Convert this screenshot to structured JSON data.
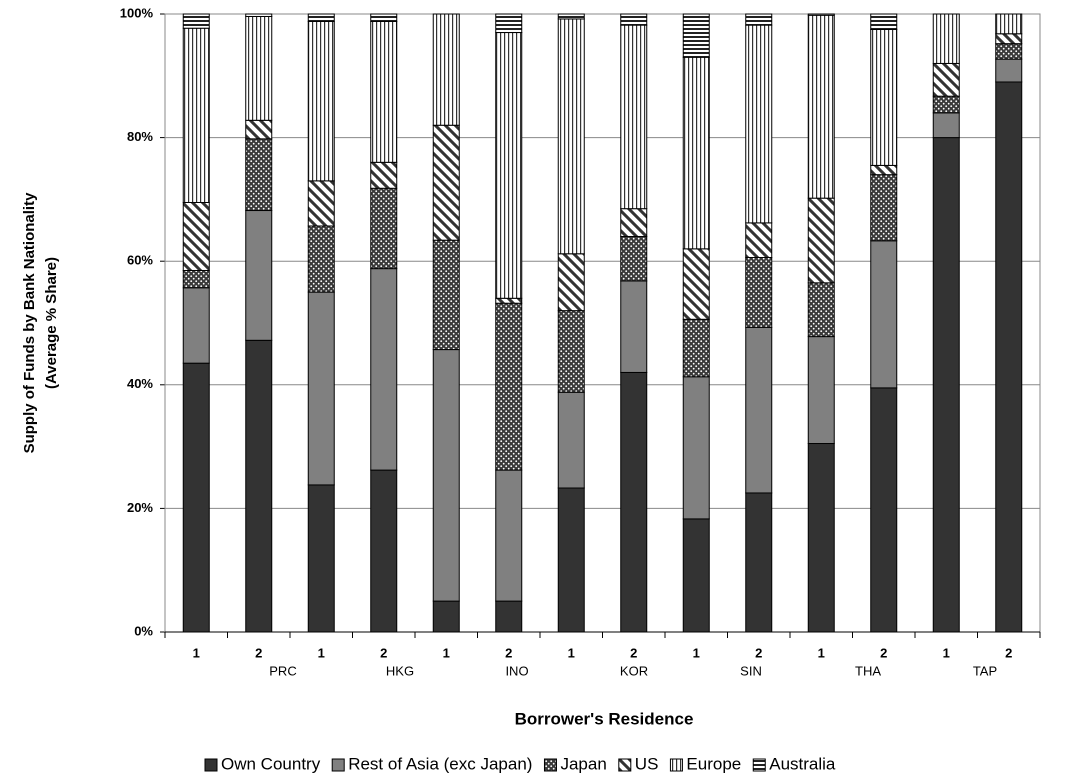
{
  "chart_data": {
    "type": "stacked_bar",
    "y_label": [
      "Supply of Funds by Bank Nationality",
      "(Average % Share)"
    ],
    "x_label": "Borrower's Residence",
    "categories": [
      "1",
      "2",
      "1",
      "2",
      "1",
      "2",
      "1",
      "2",
      "1",
      "2",
      "1",
      "2",
      "1",
      "2"
    ],
    "groups": [
      "PRC",
      "HKG",
      "INO",
      "KOR",
      "SIN",
      "THA",
      "TAP"
    ],
    "ylim": [
      0,
      100
    ],
    "yticks": [
      {
        "value": 0,
        "label": "0%"
      },
      {
        "value": 20,
        "label": "20%"
      },
      {
        "value": 40,
        "label": "40%"
      },
      {
        "value": 60,
        "label": "60%"
      },
      {
        "value": 80,
        "label": "80%"
      },
      {
        "value": 100,
        "label": "100%"
      }
    ],
    "grid": true,
    "legend": "bottom",
    "series": [
      {
        "name": "Own Country",
        "color": "#333333",
        "pattern": "solid",
        "values": [
          43.5,
          47.2,
          23.8,
          26.2,
          5,
          5,
          23.3,
          42,
          18.3,
          22.5,
          30.5,
          39.5,
          80,
          89
        ]
      },
      {
        "name": "Rest of Asia (exc Japan)",
        "color": "#808080",
        "pattern": "solid",
        "values": [
          12.2,
          21,
          31.2,
          32.6,
          40.7,
          21.2,
          15.5,
          14.8,
          23,
          26.8,
          17.3,
          23.8,
          4,
          3.7
        ]
      },
      {
        "name": "Japan",
        "color": "#3a3a3a",
        "pattern": "dots",
        "values": [
          2.8,
          11.6,
          10.7,
          13,
          17.7,
          27,
          13.2,
          7.2,
          9.3,
          11.3,
          8.7,
          10.7,
          2.7,
          2.5
        ]
      },
      {
        "name": "US",
        "color": "#333333",
        "pattern": "diagonal",
        "values": [
          11,
          3,
          7.3,
          4.2,
          18.6,
          0.8,
          9.2,
          4.5,
          11.4,
          5.6,
          13.7,
          1.5,
          5.3,
          1.6
        ]
      },
      {
        "name": "Europe",
        "color": "#333333",
        "pattern": "vertical",
        "values": [
          28.2,
          16.8,
          25.8,
          22.8,
          18,
          43,
          38,
          29.7,
          31,
          32,
          29.6,
          22,
          8,
          3.2
        ]
      },
      {
        "name": "Australia",
        "color": "#222222",
        "pattern": "horizontal",
        "values": [
          2.3,
          0.4,
          1.2,
          1.2,
          0,
          3,
          0.8,
          1.8,
          7,
          1.8,
          0.2,
          2.5,
          0,
          0
        ]
      }
    ]
  }
}
